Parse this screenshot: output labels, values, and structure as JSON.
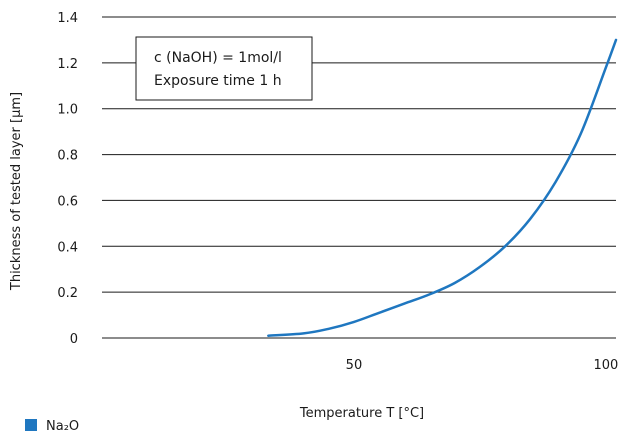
{
  "chart_data": {
    "type": "line",
    "title": "",
    "xlabel": "Temperature T [°C]",
    "ylabel": "Thickness of tested layer [µm]",
    "xlim": [
      0,
      102
    ],
    "ylim": [
      0,
      1.4
    ],
    "x_ticks": [
      50,
      100
    ],
    "x_tick_labels": [
      "50",
      "100"
    ],
    "y_ticks": [
      0,
      0.2,
      0.4,
      0.6,
      0.8,
      1.0,
      1.2,
      1.4
    ],
    "y_tick_labels": [
      "0",
      "0.2",
      "0.4",
      "0.6",
      "0.8",
      "1.0",
      "1.2",
      "1.4"
    ],
    "grid": "horizontal",
    "annotation_lines": [
      "c (NaOH) = 1mol/l",
      "Exposure time 1 h"
    ],
    "legend": {
      "position": "bottom-left",
      "label": "Na₂O",
      "color": "#1f77c0"
    },
    "series": [
      {
        "name": "Na₂O",
        "color": "#1f77c0",
        "x": [
          33,
          40,
          45,
          50,
          55,
          60,
          65,
          70,
          75,
          80,
          85,
          90,
          95,
          100,
          102
        ],
        "y": [
          0.01,
          0.02,
          0.04,
          0.07,
          0.11,
          0.15,
          0.19,
          0.24,
          0.31,
          0.4,
          0.52,
          0.68,
          0.89,
          1.18,
          1.3
        ]
      }
    ]
  }
}
